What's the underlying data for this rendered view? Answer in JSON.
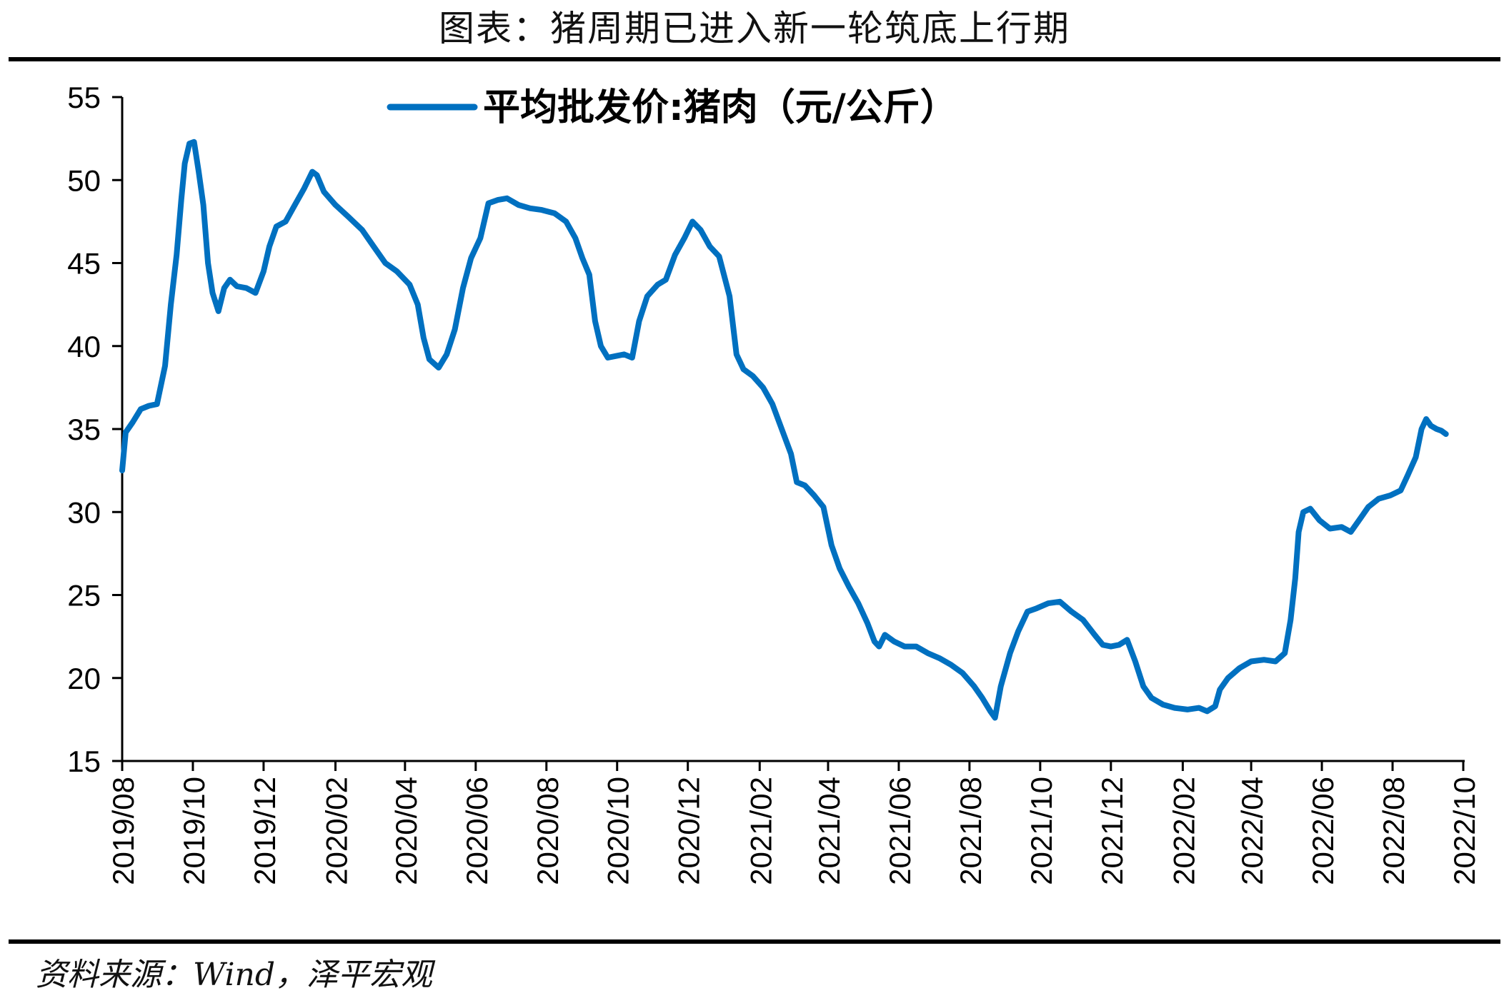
{
  "page": {
    "title": "图表：猪周期已进入新一轮筑底上行期",
    "source": "资料来源：Wind，泽平宏观"
  },
  "colors": {
    "series": "#0070C0",
    "axis": "#000000",
    "rule": "#000000"
  },
  "chart_data": {
    "type": "line",
    "title": "",
    "xlabel": "",
    "ylabel": "",
    "ylim": [
      15,
      55
    ],
    "yticks": [
      15,
      20,
      25,
      30,
      35,
      40,
      45,
      50,
      55
    ],
    "xlim": [
      "2019-08",
      "2022-10"
    ],
    "xticks": [
      "2019/08",
      "2019/10",
      "2019/12",
      "2020/02",
      "2020/04",
      "2020/06",
      "2020/08",
      "2020/10",
      "2020/12",
      "2021/02",
      "2021/04",
      "2021/06",
      "2021/08",
      "2021/10",
      "2021/12",
      "2022/02",
      "2022/04",
      "2022/06",
      "2022/08",
      "2022/10"
    ],
    "grid": false,
    "legend": "top",
    "series": [
      {
        "name": "平均批发价:猪肉（元/公斤）",
        "color": "#0070C0",
        "points": [
          [
            "2019-08-01",
            32.5
          ],
          [
            "2019-08-04",
            34.8
          ],
          [
            "2019-08-10",
            35.4
          ],
          [
            "2019-08-17",
            36.2
          ],
          [
            "2019-08-24",
            36.4
          ],
          [
            "2019-08-31",
            36.5
          ],
          [
            "2019-09-07",
            38.8
          ],
          [
            "2019-09-12",
            42.5
          ],
          [
            "2019-09-17",
            45.5
          ],
          [
            "2019-09-21",
            48.8
          ],
          [
            "2019-09-24",
            51.0
          ],
          [
            "2019-09-28",
            52.2
          ],
          [
            "2019-10-02",
            52.3
          ],
          [
            "2019-10-06",
            50.5
          ],
          [
            "2019-10-10",
            48.5
          ],
          [
            "2019-10-14",
            45.0
          ],
          [
            "2019-10-18",
            43.2
          ],
          [
            "2019-10-23",
            42.1
          ],
          [
            "2019-10-28",
            43.5
          ],
          [
            "2019-11-02",
            44.0
          ],
          [
            "2019-11-08",
            43.6
          ],
          [
            "2019-11-16",
            43.5
          ],
          [
            "2019-11-24",
            43.2
          ],
          [
            "2019-12-01",
            44.5
          ],
          [
            "2019-12-06",
            46.0
          ],
          [
            "2019-12-12",
            47.2
          ],
          [
            "2019-12-20",
            47.5
          ],
          [
            "2019-12-28",
            48.5
          ],
          [
            "2020-01-05",
            49.5
          ],
          [
            "2020-01-12",
            50.5
          ],
          [
            "2020-01-16",
            50.3
          ],
          [
            "2020-01-22",
            49.3
          ],
          [
            "2020-02-01",
            48.5
          ],
          [
            "2020-02-12",
            47.8
          ],
          [
            "2020-02-24",
            47.0
          ],
          [
            "2020-03-05",
            46.0
          ],
          [
            "2020-03-15",
            45.0
          ],
          [
            "2020-03-25",
            44.5
          ],
          [
            "2020-04-05",
            43.7
          ],
          [
            "2020-04-12",
            42.5
          ],
          [
            "2020-04-17",
            40.5
          ],
          [
            "2020-04-22",
            39.2
          ],
          [
            "2020-04-30",
            38.7
          ],
          [
            "2020-05-07",
            39.5
          ],
          [
            "2020-05-14",
            41.0
          ],
          [
            "2020-05-21",
            43.5
          ],
          [
            "2020-05-28",
            45.3
          ],
          [
            "2020-06-05",
            46.5
          ],
          [
            "2020-06-12",
            48.6
          ],
          [
            "2020-06-20",
            48.8
          ],
          [
            "2020-06-28",
            48.9
          ],
          [
            "2020-07-08",
            48.5
          ],
          [
            "2020-07-18",
            48.3
          ],
          [
            "2020-07-28",
            48.2
          ],
          [
            "2020-08-08",
            48.0
          ],
          [
            "2020-08-18",
            47.5
          ],
          [
            "2020-08-26",
            46.5
          ],
          [
            "2020-09-01",
            45.3
          ],
          [
            "2020-09-07",
            44.3
          ],
          [
            "2020-09-12",
            41.5
          ],
          [
            "2020-09-17",
            40.0
          ],
          [
            "2020-09-23",
            39.3
          ],
          [
            "2020-09-30",
            39.4
          ],
          [
            "2020-10-07",
            39.5
          ],
          [
            "2020-10-14",
            39.3
          ],
          [
            "2020-10-20",
            41.5
          ],
          [
            "2020-10-27",
            43.0
          ],
          [
            "2020-11-05",
            43.7
          ],
          [
            "2020-11-12",
            44.0
          ],
          [
            "2020-11-20",
            45.5
          ],
          [
            "2020-11-28",
            46.5
          ],
          [
            "2020-12-05",
            47.5
          ],
          [
            "2020-12-12",
            47.0
          ],
          [
            "2020-12-20",
            46.0
          ],
          [
            "2020-12-28",
            45.4
          ],
          [
            "2021-01-06",
            43.0
          ],
          [
            "2021-01-12",
            39.5
          ],
          [
            "2021-01-18",
            38.6
          ],
          [
            "2021-01-26",
            38.2
          ],
          [
            "2021-02-04",
            37.5
          ],
          [
            "2021-02-12",
            36.5
          ],
          [
            "2021-02-20",
            35.0
          ],
          [
            "2021-02-28",
            33.5
          ],
          [
            "2021-03-05",
            31.8
          ],
          [
            "2021-03-12",
            31.6
          ],
          [
            "2021-03-20",
            31.0
          ],
          [
            "2021-03-28",
            30.3
          ],
          [
            "2021-04-04",
            28.0
          ],
          [
            "2021-04-11",
            26.6
          ],
          [
            "2021-04-19",
            25.5
          ],
          [
            "2021-04-27",
            24.5
          ],
          [
            "2021-05-05",
            23.3
          ],
          [
            "2021-05-11",
            22.2
          ],
          [
            "2021-05-15",
            21.9
          ],
          [
            "2021-05-20",
            22.6
          ],
          [
            "2021-05-28",
            22.2
          ],
          [
            "2021-06-06",
            21.9
          ],
          [
            "2021-06-16",
            21.9
          ],
          [
            "2021-06-26",
            21.5
          ],
          [
            "2021-07-06",
            21.2
          ],
          [
            "2021-07-16",
            20.8
          ],
          [
            "2021-07-26",
            20.3
          ],
          [
            "2021-08-05",
            19.5
          ],
          [
            "2021-08-12",
            18.8
          ],
          [
            "2021-08-19",
            18.0
          ],
          [
            "2021-08-23",
            17.6
          ],
          [
            "2021-08-28",
            19.5
          ],
          [
            "2021-09-05",
            21.5
          ],
          [
            "2021-09-12",
            22.8
          ],
          [
            "2021-09-20",
            24.0
          ],
          [
            "2021-09-28",
            24.2
          ],
          [
            "2021-10-08",
            24.5
          ],
          [
            "2021-10-18",
            24.6
          ],
          [
            "2021-10-28",
            24.0
          ],
          [
            "2021-11-07",
            23.5
          ],
          [
            "2021-11-17",
            22.6
          ],
          [
            "2021-11-24",
            22.0
          ],
          [
            "2021-12-01",
            21.9
          ],
          [
            "2021-12-08",
            22.0
          ],
          [
            "2021-12-15",
            22.3
          ],
          [
            "2021-12-22",
            21.0
          ],
          [
            "2021-12-29",
            19.5
          ],
          [
            "2022-01-05",
            18.8
          ],
          [
            "2022-01-15",
            18.4
          ],
          [
            "2022-01-25",
            18.2
          ],
          [
            "2022-02-05",
            18.1
          ],
          [
            "2022-02-15",
            18.2
          ],
          [
            "2022-02-22",
            18.0
          ],
          [
            "2022-03-01",
            18.3
          ],
          [
            "2022-03-05",
            19.3
          ],
          [
            "2022-03-12",
            20.0
          ],
          [
            "2022-03-22",
            20.6
          ],
          [
            "2022-04-01",
            21.0
          ],
          [
            "2022-04-12",
            21.1
          ],
          [
            "2022-04-22",
            21.0
          ],
          [
            "2022-04-30",
            21.5
          ],
          [
            "2022-05-05",
            23.5
          ],
          [
            "2022-05-09",
            26.0
          ],
          [
            "2022-05-12",
            28.8
          ],
          [
            "2022-05-16",
            30.0
          ],
          [
            "2022-05-22",
            30.2
          ],
          [
            "2022-05-30",
            29.5
          ],
          [
            "2022-06-08",
            29.0
          ],
          [
            "2022-06-18",
            29.1
          ],
          [
            "2022-06-26",
            28.8
          ],
          [
            "2022-07-03",
            29.5
          ],
          [
            "2022-07-11",
            30.3
          ],
          [
            "2022-07-20",
            30.8
          ],
          [
            "2022-07-30",
            31.0
          ],
          [
            "2022-08-08",
            31.3
          ],
          [
            "2022-08-14",
            32.2
          ],
          [
            "2022-08-21",
            33.3
          ],
          [
            "2022-08-26",
            35.0
          ],
          [
            "2022-08-30",
            35.6
          ],
          [
            "2022-09-03",
            35.2
          ],
          [
            "2022-09-08",
            35.0
          ],
          [
            "2022-09-12",
            34.9
          ],
          [
            "2022-09-16",
            34.7
          ]
        ]
      }
    ]
  }
}
